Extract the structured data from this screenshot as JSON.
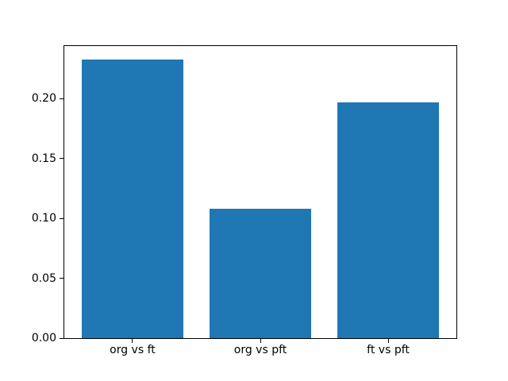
{
  "chart_data": {
    "type": "bar",
    "title": "",
    "xlabel": "",
    "ylabel": "",
    "categories": [
      "org vs ft",
      "org vs pft",
      "ft vs pft"
    ],
    "values": [
      0.233,
      0.108,
      0.197
    ],
    "yticks": [
      0,
      0.05,
      0.1,
      0.15,
      0.2
    ],
    "ytick_labels": [
      "0.00",
      "0.05",
      "0.10",
      "0.15",
      "0.20"
    ],
    "ylim": [
      0,
      0.244
    ],
    "xlim": [
      -0.54,
      2.54
    ],
    "bar_width": 0.8,
    "bar_color": "#1f77b4",
    "axis_color": "#000000",
    "text_color": "#000000",
    "background_color": "#ffffff",
    "grid": false,
    "legend": "none"
  }
}
